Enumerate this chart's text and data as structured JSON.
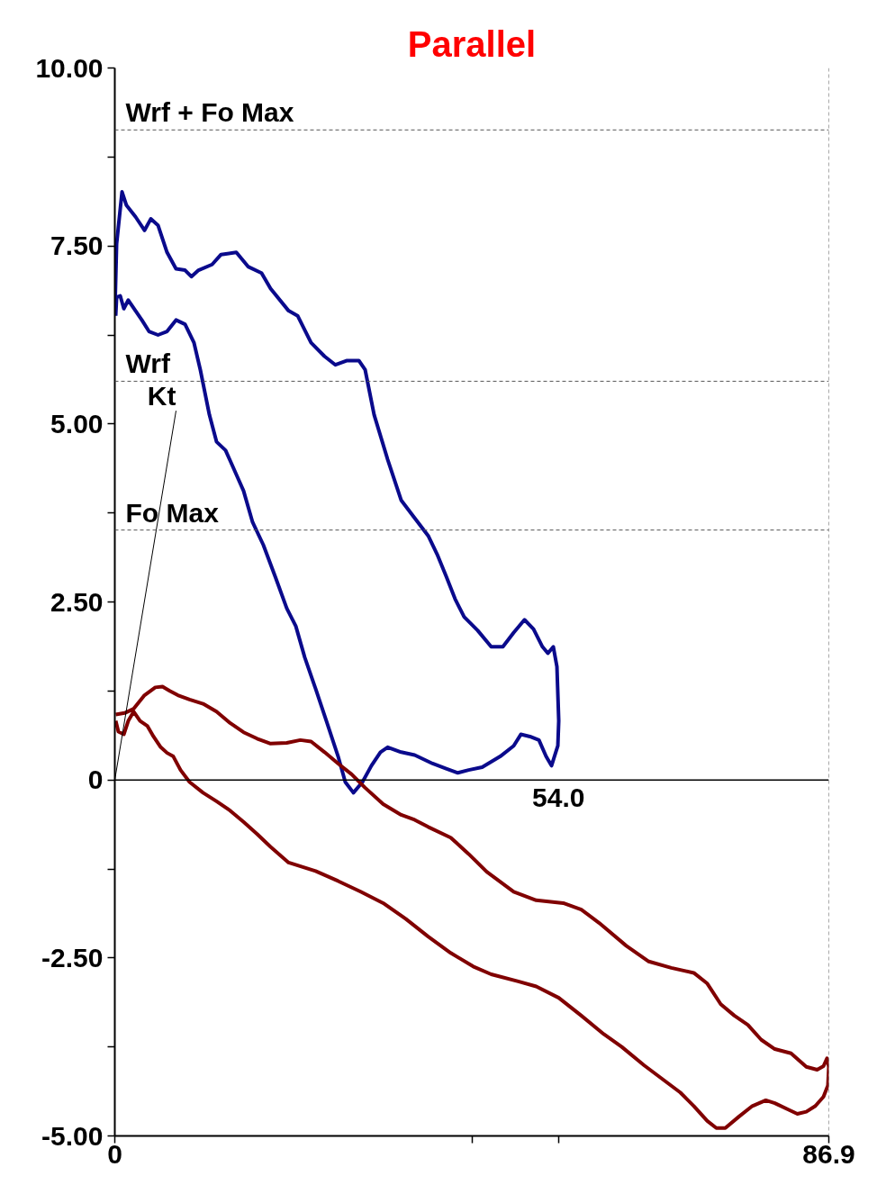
{
  "chart_data": {
    "type": "line",
    "title": "Parallel",
    "xlim": [
      0,
      86.9
    ],
    "ylim": [
      -5,
      10
    ],
    "xticks": [
      0,
      {
        "value": 43.45,
        "label": null
      },
      {
        "value": 54.0,
        "label": null
      },
      {
        "value": 86.9,
        "label": "86.9"
      }
    ],
    "yticks": [
      {
        "value": 10,
        "label": "10.00"
      },
      {
        "value": 8.75,
        "label": null
      },
      {
        "value": 7.5,
        "label": "7.50"
      },
      {
        "value": 6.25,
        "label": null
      },
      {
        "value": 5,
        "label": "5.00"
      },
      {
        "value": 3.75,
        "label": null
      },
      {
        "value": 2.5,
        "label": "2.50"
      },
      {
        "value": 1.25,
        "label": null
      },
      0,
      {
        "value": -1.25,
        "label": null
      },
      {
        "value": -2.5,
        "label": "-2.50"
      },
      {
        "value": -3.75,
        "label": null
      },
      {
        "value": -5,
        "label": "-5.00"
      }
    ],
    "grid": false,
    "marker": "none",
    "line_style": "solid",
    "ref_lines": [
      {
        "axis": "y",
        "value": 9.13,
        "label": "Wrf + Fo Max",
        "color": "#555555",
        "line_style": "dashed"
      },
      {
        "axis": "y",
        "value": 5.6,
        "label": "Wrf",
        "color": "#555555",
        "line_style": "dashed"
      },
      {
        "axis": "y",
        "value": 3.51,
        "label": "Fo Max",
        "color": "#555555",
        "line_style": "dashed"
      },
      {
        "axis": "y",
        "value": 0,
        "color": "#000000",
        "line_style": "solid"
      },
      {
        "axis": "x",
        "value": 86.9,
        "color": "#555555",
        "line_style": "dashed"
      }
    ],
    "annotations": [
      {
        "text": "Kt",
        "x": 0,
        "y": 0
      },
      {
        "text": "54.0",
        "x": 54.0,
        "y": 0
      }
    ],
    "series": [
      {
        "color": "#0a0a8c",
        "x": [
          0.0,
          0.22,
          0.88,
          1.42,
          2.52,
          3.62,
          4.38,
          5.26,
          6.36,
          7.45,
          8.55,
          9.32,
          10.19,
          11.84,
          12.93,
          14.79,
          16.22,
          17.86,
          18.96,
          21.15,
          22.25,
          23.89,
          25.53,
          26.85,
          28.27,
          29.7,
          30.47,
          31.56,
          33.21,
          34.85,
          36.49,
          38.14,
          39.23,
          40.33,
          41.42,
          42.52,
          44.16,
          45.81,
          47.23,
          48.55,
          49.86,
          50.96,
          52.05,
          52.71,
          53.37,
          53.81,
          54.03,
          53.92,
          53.15,
          52.49,
          51.62,
          50.52,
          49.42,
          48.55,
          46.9,
          44.71,
          43.07,
          41.75,
          40.33,
          38.68,
          36.49,
          34.85,
          33.21,
          32.33,
          31.23,
          30.14,
          29.04,
          28.05,
          27.18,
          25.75,
          24.44,
          23.12,
          22.03,
          20.93,
          19.51,
          18.08,
          16.77,
          15.67,
          14.79,
          13.48,
          12.38,
          11.51,
          10.41,
          9.64,
          8.55,
          7.45,
          6.36,
          5.26,
          4.16,
          3.29,
          2.52,
          1.64,
          1.1,
          0.66,
          0.22,
          0.11
        ],
        "values": [
          6.52,
          7.53,
          8.26,
          8.07,
          7.91,
          7.72,
          7.88,
          7.79,
          7.41,
          7.18,
          7.16,
          7.07,
          7.16,
          7.24,
          7.38,
          7.41,
          7.21,
          7.12,
          6.9,
          6.59,
          6.52,
          6.14,
          5.95,
          5.83,
          5.89,
          5.89,
          5.76,
          5.13,
          4.5,
          3.93,
          3.68,
          3.43,
          3.17,
          2.86,
          2.54,
          2.29,
          2.1,
          1.87,
          1.87,
          2.07,
          2.25,
          2.12,
          1.87,
          1.78,
          1.87,
          1.59,
          0.83,
          0.48,
          0.2,
          0.33,
          0.56,
          0.61,
          0.64,
          0.48,
          0.33,
          0.18,
          0.14,
          0.1,
          0.16,
          0.23,
          0.35,
          0.39,
          0.46,
          0.39,
          0.2,
          -0.03,
          -0.18,
          -0.03,
          0.33,
          0.83,
          1.28,
          1.72,
          2.16,
          2.41,
          2.86,
          3.3,
          3.62,
          4.06,
          4.29,
          4.63,
          4.75,
          5.13,
          5.76,
          6.14,
          6.4,
          6.46,
          6.3,
          6.25,
          6.3,
          6.46,
          6.59,
          6.74,
          6.62,
          6.8,
          6.78,
          6.52
        ]
      },
      {
        "color": "#800000",
        "x": [
          0.11,
          1.21,
          2.3,
          3.62,
          4.93,
          5.81,
          6.68,
          7.67,
          9.1,
          10.74,
          12.38,
          14.03,
          15.67,
          17.32,
          18.96,
          20.93,
          22.58,
          23.89,
          25.53,
          27.18,
          28.82,
          30.47,
          32.66,
          34.85,
          36.49,
          38.14,
          40.88,
          43.07,
          45.26,
          48.55,
          51.29,
          54.58,
          56.77,
          58.96,
          62.25,
          64.99,
          67.73,
          70.47,
          72.11,
          73.75,
          75.4,
          77.04,
          78.68,
          80.33,
          82.3,
          84.16,
          85.48,
          86.25,
          86.68,
          86.9,
          86.79,
          86.25,
          85.26,
          84.16,
          83.07,
          81.97,
          80.33,
          79.23,
          77.59,
          75.95,
          74.3,
          73.21,
          72.11,
          70.47,
          68.82,
          66.63,
          64.44,
          61.7,
          59.51,
          56.77,
          54.03,
          51.29,
          49.1,
          45.81,
          43.62,
          40.88,
          38.14,
          35.4,
          32.66,
          29.92,
          27.18,
          24.44,
          21.15,
          18.96,
          17.32,
          15.67,
          14.03,
          12.38,
          10.74,
          9.1,
          8.0,
          7.12,
          6.36,
          5.59,
          4.71,
          3.95,
          3.07,
          2.3,
          1.64,
          1.1,
          0.44,
          0.11
        ],
        "values": [
          0.92,
          0.94,
          1.0,
          1.19,
          1.3,
          1.31,
          1.25,
          1.19,
          1.13,
          1.07,
          0.96,
          0.8,
          0.67,
          0.58,
          0.51,
          0.52,
          0.56,
          0.54,
          0.39,
          0.23,
          0.08,
          -0.11,
          -0.34,
          -0.49,
          -0.56,
          -0.66,
          -0.81,
          -1.04,
          -1.29,
          -1.57,
          -1.69,
          -1.73,
          -1.82,
          -2.01,
          -2.33,
          -2.55,
          -2.64,
          -2.71,
          -2.86,
          -3.15,
          -3.31,
          -3.44,
          -3.65,
          -3.78,
          -3.84,
          -4.03,
          -4.07,
          -4.02,
          -3.91,
          -4.03,
          -4.29,
          -4.45,
          -4.58,
          -4.66,
          -4.69,
          -4.63,
          -4.54,
          -4.5,
          -4.58,
          -4.73,
          -4.89,
          -4.89,
          -4.79,
          -4.58,
          -4.39,
          -4.2,
          -4.01,
          -3.75,
          -3.57,
          -3.31,
          -3.06,
          -2.9,
          -2.83,
          -2.73,
          -2.62,
          -2.43,
          -2.2,
          -1.95,
          -1.73,
          -1.57,
          -1.42,
          -1.28,
          -1.16,
          -0.94,
          -0.76,
          -0.59,
          -0.43,
          -0.3,
          -0.18,
          -0.03,
          0.14,
          0.33,
          0.38,
          0.46,
          0.61,
          0.76,
          0.83,
          0.96,
          0.83,
          0.64,
          0.68,
          0.83
        ]
      }
    ]
  }
}
